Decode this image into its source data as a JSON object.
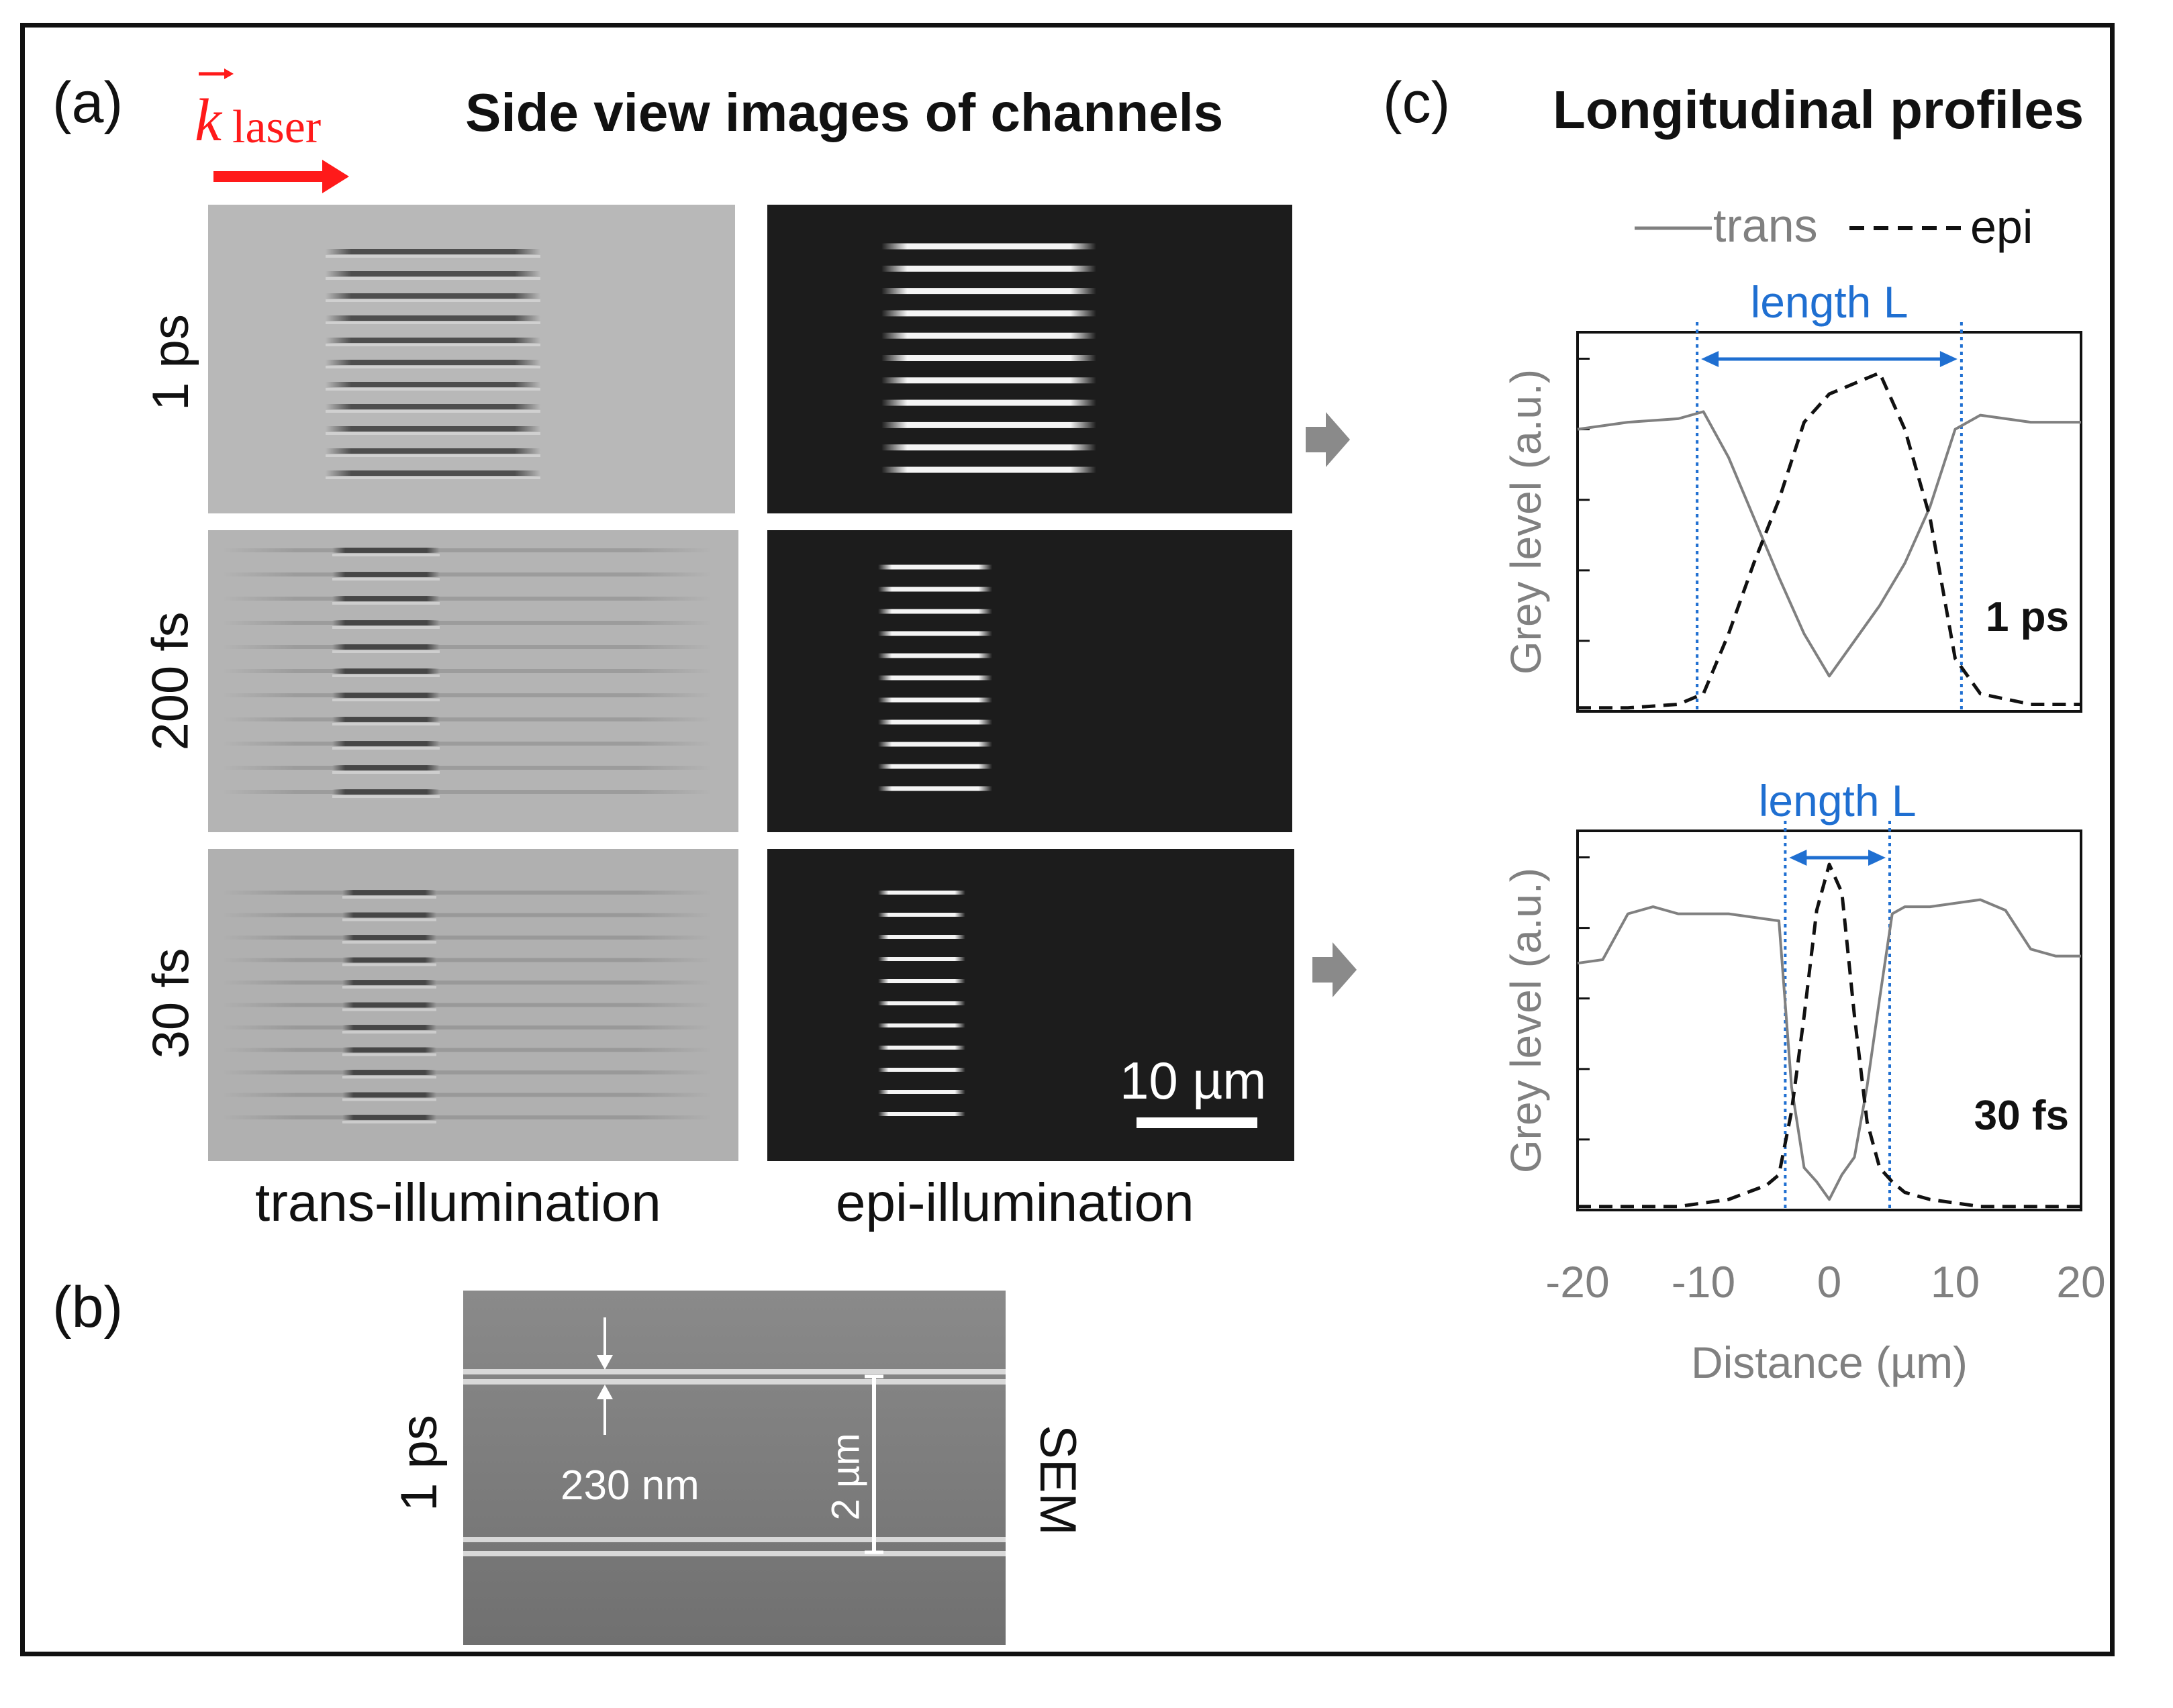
{
  "figure": {
    "panel_a_label": "(a)",
    "panel_b_label": "(b)",
    "panel_c_label": "(c)",
    "k_symbol": "k",
    "k_subscript": "laser",
    "title_a": "Side view images of channels",
    "title_c": "Longitudinal profiles",
    "rows": [
      "1 ps",
      "200 fs",
      "30 fs"
    ],
    "col_trans": "trans-illumination",
    "col_epi": "epi-illumination",
    "scalebar": "10 µm",
    "sem": {
      "row_label": "1 ps",
      "width_label": "230 nm",
      "spacing_label": "2 µm",
      "side_label": "SEM"
    },
    "colors": {
      "laser": "#ff1a1a",
      "annotation": "#1f6fd1",
      "trans_line": "#808080",
      "epi_line": "#111111",
      "grey_arrow": "#8a8a8a"
    }
  },
  "chart_data": [
    {
      "type": "line",
      "title": "",
      "annotation": "1 ps",
      "length_label": "length L",
      "length_bounds": [
        -10.5,
        10.5
      ],
      "xlabel": "Distance (µm)",
      "ylabel": "Grey level (a.u.)",
      "xlim": [
        -20,
        20
      ],
      "legend": [
        "trans",
        "epi"
      ],
      "series": [
        {
          "name": "trans",
          "x": [
            -20,
            -16,
            -12,
            -10,
            -8,
            -6,
            -4,
            -2,
            0,
            2,
            4,
            6,
            8,
            10,
            12,
            16,
            20
          ],
          "y": [
            0.8,
            0.82,
            0.83,
            0.85,
            0.72,
            0.55,
            0.38,
            0.22,
            0.1,
            0.2,
            0.3,
            0.42,
            0.58,
            0.8,
            0.84,
            0.82,
            0.82
          ]
        },
        {
          "name": "epi",
          "x": [
            -20,
            -16,
            -12,
            -10,
            -8,
            -6,
            -4,
            -2,
            0,
            2,
            4,
            6,
            8,
            10,
            12,
            16,
            20
          ],
          "y": [
            0.01,
            0.01,
            0.02,
            0.05,
            0.22,
            0.42,
            0.6,
            0.82,
            0.9,
            0.93,
            0.96,
            0.8,
            0.55,
            0.15,
            0.05,
            0.02,
            0.02
          ]
        }
      ]
    },
    {
      "type": "line",
      "title": "",
      "annotation": "30 fs",
      "length_label": "length L",
      "length_bounds": [
        -3.5,
        4.8
      ],
      "xlabel": "Distance (µm)",
      "ylabel": "Grey level (a.u.)",
      "xlim": [
        -20,
        20
      ],
      "xticks": [
        "-20",
        "-10",
        "0",
        "10",
        "20"
      ],
      "legend": [
        "trans",
        "epi"
      ],
      "series": [
        {
          "name": "trans",
          "x": [
            -20,
            -18,
            -16,
            -14,
            -12,
            -8,
            -4,
            -3,
            -2,
            -1,
            0,
            1,
            2,
            3,
            4,
            5,
            6,
            8,
            12,
            14,
            16,
            18,
            20
          ],
          "y": [
            0.7,
            0.71,
            0.84,
            0.86,
            0.84,
            0.84,
            0.82,
            0.35,
            0.12,
            0.08,
            0.03,
            0.1,
            0.15,
            0.35,
            0.6,
            0.84,
            0.86,
            0.86,
            0.88,
            0.85,
            0.74,
            0.72,
            0.72
          ]
        },
        {
          "name": "epi",
          "x": [
            -20,
            -12,
            -8,
            -5,
            -4,
            -3,
            -2,
            -1,
            0,
            1,
            2,
            3,
            4,
            5,
            6,
            8,
            12,
            20
          ],
          "y": [
            0.01,
            0.01,
            0.03,
            0.07,
            0.1,
            0.28,
            0.55,
            0.85,
            0.98,
            0.9,
            0.55,
            0.25,
            0.12,
            0.08,
            0.05,
            0.03,
            0.01,
            0.01
          ]
        }
      ]
    }
  ]
}
